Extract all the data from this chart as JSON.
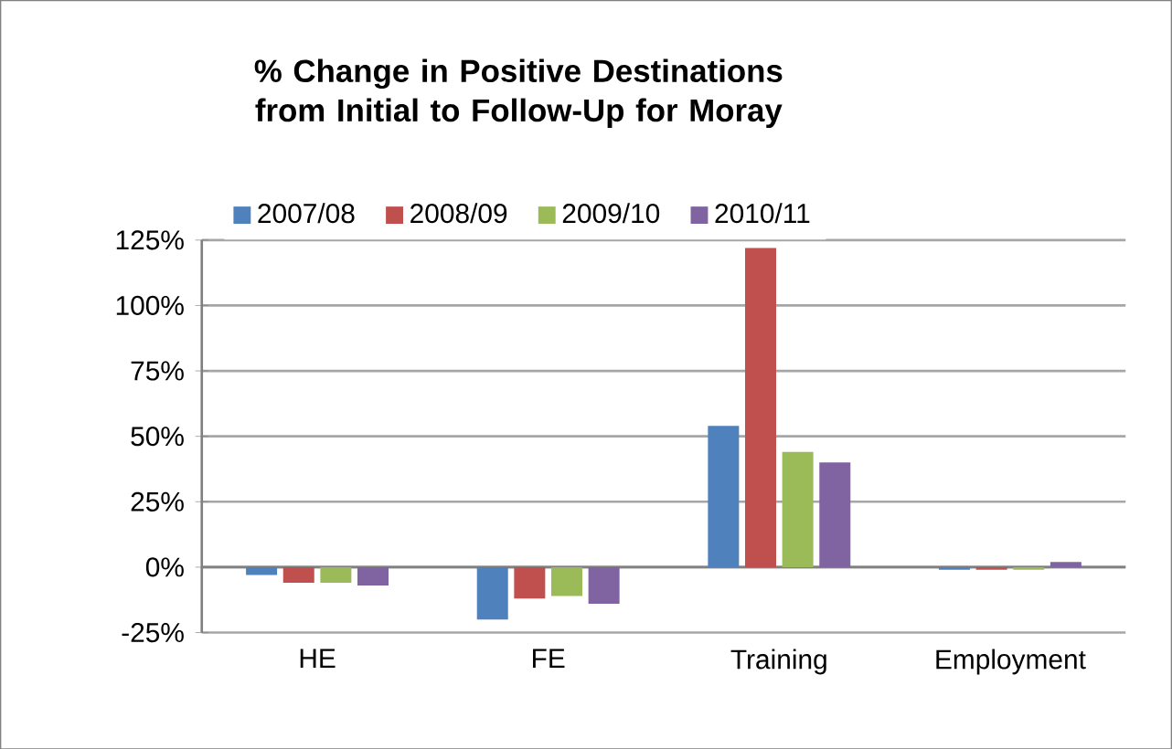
{
  "chart_data": {
    "type": "bar",
    "title": "% Change in Positive Destinations from Initial to Follow-Up for Moray",
    "categories": [
      "HE",
      "FE",
      "Training",
      "Employment"
    ],
    "series": [
      {
        "name": "2007/08",
        "color": "#4f81bd",
        "values": [
          -3,
          -20,
          54,
          -1
        ]
      },
      {
        "name": "2008/09",
        "color": "#c0504d",
        "values": [
          -6,
          -12,
          122,
          -1
        ]
      },
      {
        "name": "2009/10",
        "color": "#9bbb59",
        "values": [
          -6,
          -11,
          44,
          -1
        ]
      },
      {
        "name": "2010/11",
        "color": "#8064a2",
        "values": [
          -7,
          -14,
          40,
          2
        ]
      }
    ],
    "ylim": [
      -25,
      125
    ],
    "yticks": [
      {
        "value": -25,
        "label": "-25%"
      },
      {
        "value": 0,
        "label": "0%"
      },
      {
        "value": 25,
        "label": "25%"
      },
      {
        "value": 50,
        "label": "50%"
      },
      {
        "value": 75,
        "label": "75%"
      },
      {
        "value": 100,
        "label": "100%"
      },
      {
        "value": 125,
        "label": "125%"
      }
    ],
    "grid": "y",
    "legend": "top"
  }
}
